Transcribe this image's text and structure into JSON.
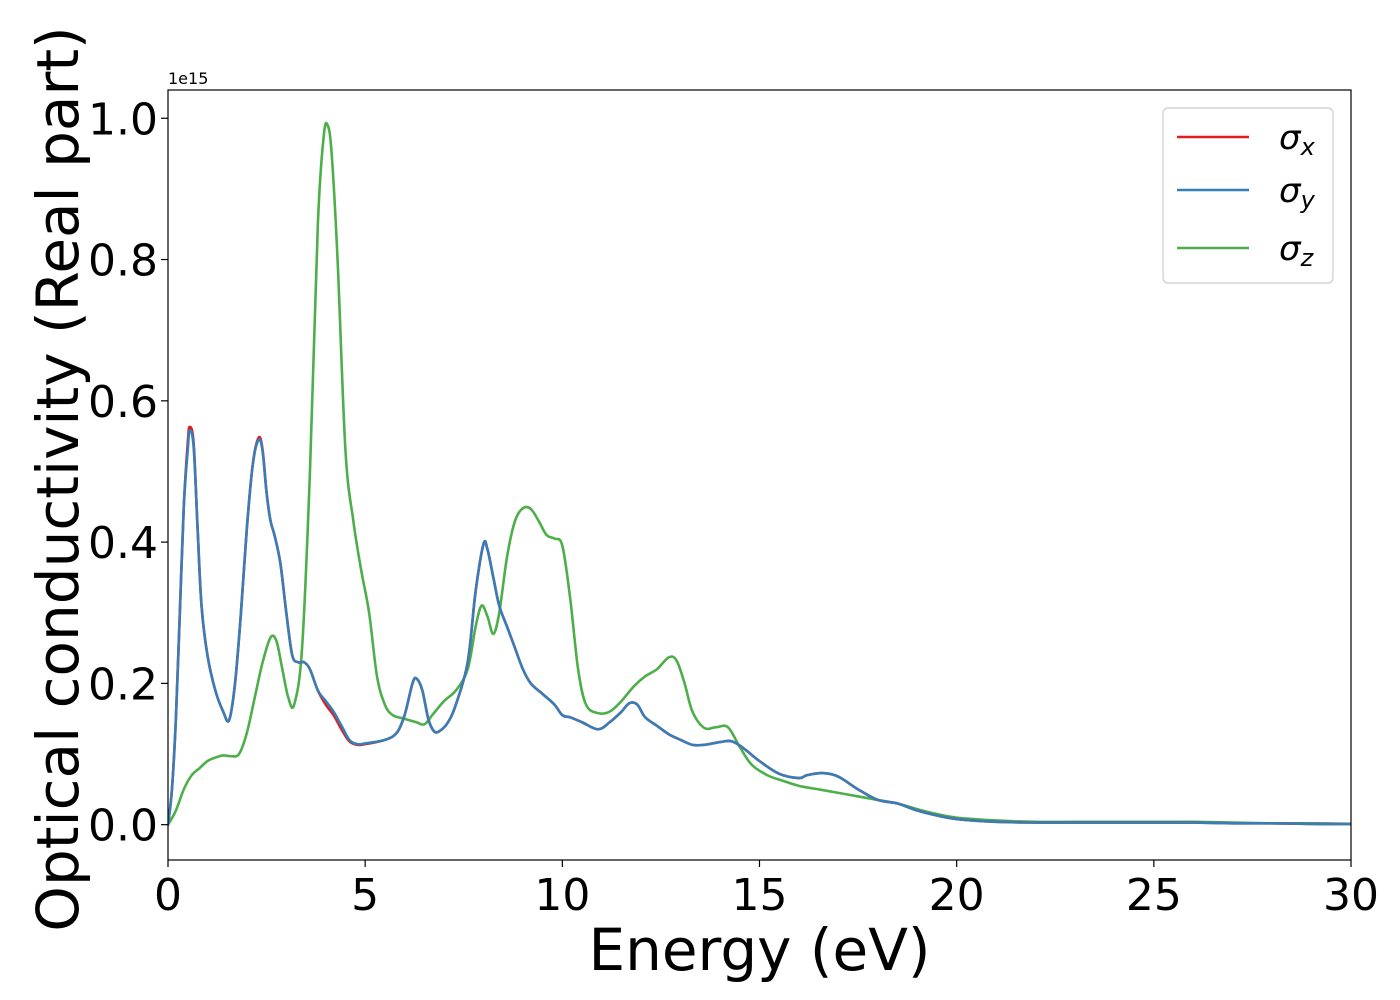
{
  "chart_data": {
    "type": "line",
    "xlabel": "Energy (eV)",
    "ylabel": "Optical conductivity (Real part)",
    "xlim": [
      0,
      30
    ],
    "ylim": [
      -0.05,
      1.04
    ],
    "y_scale_label": "1e15",
    "grid": false,
    "legend_position": "top-right",
    "x_ticks": [
      "0",
      "5",
      "10",
      "15",
      "20",
      "25",
      "30"
    ],
    "y_ticks": [
      "0.0",
      "0.2",
      "0.4",
      "0.6",
      "0.8",
      "1.0"
    ],
    "series": [
      {
        "name": "σx",
        "symbol": "σ",
        "subscript": "x",
        "color": "#e41a1c",
        "x": [
          0,
          0.1,
          0.2,
          0.3,
          0.4,
          0.5,
          0.55,
          0.65,
          0.75,
          0.85,
          1.0,
          1.2,
          1.4,
          1.55,
          1.7,
          1.85,
          2.0,
          2.15,
          2.3,
          2.4,
          2.5,
          2.6,
          2.7,
          2.85,
          3.0,
          3.15,
          3.3,
          3.45,
          3.6,
          3.8,
          4.0,
          4.2,
          4.4,
          4.6,
          4.8,
          5.0,
          5.5,
          5.8,
          6.0,
          6.2,
          6.3,
          6.45,
          6.6,
          6.75,
          6.9,
          7.1,
          7.3,
          7.6,
          7.8,
          8.0,
          8.1,
          8.25,
          8.4,
          8.6,
          8.8,
          9.0,
          9.2,
          9.5,
          9.8,
          10.0,
          10.2,
          10.5,
          10.9,
          11.2,
          11.5,
          11.7,
          11.9,
          12.1,
          12.4,
          12.7,
          13.0,
          13.3,
          13.6,
          14.0,
          14.3,
          14.6,
          15.0,
          15.5,
          16.0,
          16.2,
          16.6,
          17.0,
          17.5,
          18.0,
          18.5,
          19.0,
          19.5,
          20.0,
          21.0,
          22.0,
          23.0,
          24.0,
          25.0,
          26.0,
          27.0,
          28.0,
          29.0,
          30.0
        ],
        "y": [
          0.0,
          0.05,
          0.15,
          0.3,
          0.45,
          0.54,
          0.563,
          0.54,
          0.42,
          0.31,
          0.24,
          0.19,
          0.16,
          0.148,
          0.2,
          0.3,
          0.42,
          0.51,
          0.548,
          0.53,
          0.47,
          0.43,
          0.41,
          0.37,
          0.3,
          0.24,
          0.23,
          0.23,
          0.22,
          0.19,
          0.17,
          0.155,
          0.135,
          0.118,
          0.113,
          0.114,
          0.12,
          0.13,
          0.155,
          0.2,
          0.207,
          0.19,
          0.15,
          0.132,
          0.133,
          0.145,
          0.17,
          0.23,
          0.33,
          0.397,
          0.39,
          0.35,
          0.31,
          0.28,
          0.25,
          0.22,
          0.2,
          0.185,
          0.17,
          0.155,
          0.152,
          0.145,
          0.135,
          0.145,
          0.16,
          0.172,
          0.17,
          0.152,
          0.14,
          0.128,
          0.12,
          0.113,
          0.113,
          0.117,
          0.118,
          0.108,
          0.09,
          0.072,
          0.066,
          0.07,
          0.073,
          0.068,
          0.05,
          0.035,
          0.03,
          0.02,
          0.013,
          0.008,
          0.004,
          0.003,
          0.003,
          0.003,
          0.003,
          0.003,
          0.002,
          0.002,
          0.001,
          0.001
        ]
      },
      {
        "name": "σy",
        "symbol": "σ",
        "subscript": "y",
        "color": "#377eb8",
        "x": [
          0,
          0.1,
          0.2,
          0.3,
          0.4,
          0.5,
          0.55,
          0.65,
          0.75,
          0.85,
          1.0,
          1.2,
          1.4,
          1.55,
          1.7,
          1.85,
          2.0,
          2.15,
          2.3,
          2.4,
          2.5,
          2.6,
          2.7,
          2.85,
          3.0,
          3.15,
          3.3,
          3.45,
          3.6,
          3.8,
          4.0,
          4.2,
          4.4,
          4.6,
          4.8,
          5.0,
          5.5,
          5.8,
          6.0,
          6.2,
          6.3,
          6.45,
          6.6,
          6.75,
          6.9,
          7.1,
          7.3,
          7.6,
          7.8,
          8.0,
          8.1,
          8.25,
          8.4,
          8.6,
          8.8,
          9.0,
          9.2,
          9.5,
          9.8,
          10.0,
          10.2,
          10.5,
          10.9,
          11.2,
          11.5,
          11.7,
          11.9,
          12.1,
          12.4,
          12.7,
          13.0,
          13.3,
          13.6,
          14.0,
          14.3,
          14.6,
          15.0,
          15.5,
          16.0,
          16.2,
          16.6,
          17.0,
          17.5,
          18.0,
          18.5,
          19.0,
          19.5,
          20.0,
          21.0,
          22.0,
          23.0,
          24.0,
          25.0,
          26.0,
          27.0,
          28.0,
          29.0,
          30.0
        ],
        "y": [
          0.0,
          0.05,
          0.15,
          0.3,
          0.45,
          0.53,
          0.558,
          0.535,
          0.42,
          0.31,
          0.24,
          0.19,
          0.16,
          0.148,
          0.2,
          0.3,
          0.42,
          0.51,
          0.545,
          0.528,
          0.47,
          0.43,
          0.41,
          0.37,
          0.3,
          0.24,
          0.23,
          0.23,
          0.22,
          0.19,
          0.175,
          0.16,
          0.14,
          0.12,
          0.114,
          0.115,
          0.12,
          0.13,
          0.155,
          0.2,
          0.207,
          0.19,
          0.15,
          0.132,
          0.133,
          0.145,
          0.17,
          0.23,
          0.33,
          0.397,
          0.39,
          0.35,
          0.31,
          0.28,
          0.25,
          0.22,
          0.2,
          0.185,
          0.17,
          0.155,
          0.152,
          0.145,
          0.135,
          0.145,
          0.16,
          0.172,
          0.17,
          0.152,
          0.14,
          0.128,
          0.12,
          0.113,
          0.113,
          0.117,
          0.118,
          0.108,
          0.09,
          0.072,
          0.066,
          0.07,
          0.073,
          0.068,
          0.05,
          0.035,
          0.03,
          0.02,
          0.013,
          0.008,
          0.004,
          0.003,
          0.003,
          0.003,
          0.003,
          0.003,
          0.002,
          0.002,
          0.001,
          0.001
        ]
      },
      {
        "name": "σz",
        "symbol": "σ",
        "subscript": "z",
        "color": "#4daf4a",
        "x": [
          0,
          0.2,
          0.4,
          0.6,
          0.8,
          1.0,
          1.2,
          1.4,
          1.6,
          1.8,
          2.0,
          2.2,
          2.4,
          2.6,
          2.75,
          2.9,
          3.05,
          3.2,
          3.4,
          3.6,
          3.8,
          3.95,
          4.05,
          4.15,
          4.3,
          4.5,
          4.7,
          4.9,
          5.1,
          5.3,
          5.5,
          5.7,
          6.0,
          6.3,
          6.5,
          6.7,
          7.0,
          7.3,
          7.6,
          7.8,
          7.95,
          8.1,
          8.25,
          8.4,
          8.6,
          8.8,
          9.0,
          9.2,
          9.4,
          9.6,
          9.8,
          10.0,
          10.2,
          10.4,
          10.6,
          10.9,
          11.2,
          11.5,
          11.8,
          12.1,
          12.4,
          12.7,
          12.9,
          13.1,
          13.3,
          13.6,
          13.9,
          14.2,
          14.5,
          14.8,
          15.2,
          15.6,
          16.0,
          16.5,
          17.0,
          17.5,
          18.0,
          18.5,
          19.0,
          19.5,
          20.0,
          21.0,
          22.0,
          23.0,
          24.0,
          25.0,
          26.0,
          27.0,
          28.0,
          29.0,
          30.0
        ],
        "y": [
          0.0,
          0.02,
          0.05,
          0.07,
          0.08,
          0.09,
          0.095,
          0.098,
          0.097,
          0.1,
          0.13,
          0.18,
          0.23,
          0.265,
          0.26,
          0.22,
          0.18,
          0.17,
          0.25,
          0.5,
          0.85,
          0.975,
          0.99,
          0.95,
          0.8,
          0.53,
          0.43,
          0.36,
          0.3,
          0.21,
          0.17,
          0.155,
          0.15,
          0.145,
          0.142,
          0.155,
          0.175,
          0.19,
          0.22,
          0.28,
          0.31,
          0.295,
          0.27,
          0.3,
          0.38,
          0.43,
          0.448,
          0.447,
          0.43,
          0.41,
          0.405,
          0.395,
          0.32,
          0.22,
          0.17,
          0.158,
          0.16,
          0.175,
          0.195,
          0.21,
          0.22,
          0.237,
          0.232,
          0.2,
          0.16,
          0.137,
          0.138,
          0.138,
          0.11,
          0.085,
          0.07,
          0.062,
          0.055,
          0.05,
          0.045,
          0.04,
          0.035,
          0.03,
          0.022,
          0.015,
          0.01,
          0.006,
          0.004,
          0.004,
          0.004,
          0.004,
          0.004,
          0.003,
          0.002,
          0.002,
          0.001
        ]
      }
    ]
  }
}
